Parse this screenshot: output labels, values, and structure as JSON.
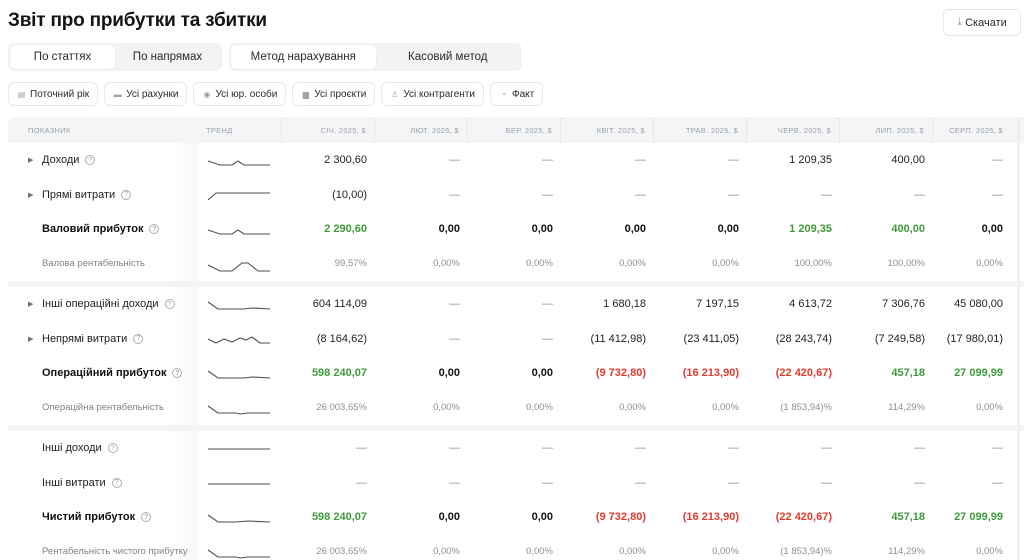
{
  "header": {
    "title": "Звіт про прибутки та збитки",
    "download_label": "Скачати",
    "download_icon": "download-icon"
  },
  "segments": {
    "grouping": [
      {
        "label": "По статтях",
        "active": true
      },
      {
        "label": "По напрямах",
        "active": false
      }
    ],
    "method": [
      {
        "label": "Метод нарахування",
        "active": true
      },
      {
        "label": "Касовий метод",
        "active": false
      }
    ]
  },
  "filters": [
    {
      "label": "Поточний рік",
      "icon": "calendar-icon"
    },
    {
      "label": "Усі рахунки",
      "icon": "accounts-icon"
    },
    {
      "label": "Усі юр. особи",
      "icon": "entity-icon"
    },
    {
      "label": "Усі проєкти",
      "icon": "briefcase-icon"
    },
    {
      "label": "Усі контрагенти",
      "icon": "people-icon"
    },
    {
      "label": "Факт",
      "icon": "fact-icon"
    }
  ],
  "table": {
    "headers": {
      "name": "ПОКАЗНИК",
      "trend": "ТРЕНД",
      "months": [
        "СІЧ. 2025, $",
        "ЛЮТ. 2025, $",
        "БЕР. 2025, $",
        "КВІТ. 2025, $",
        "ТРАВ. 2025, $",
        "ЧЕРВ. 2025, $",
        "ЛИП. 2025, $",
        "СЕРП. 2025, $"
      ]
    },
    "sections": [
      {
        "rows": [
          {
            "label": "Доходи",
            "type": "normal",
            "expandable": true,
            "help": true,
            "trend": "2,16 8,20 14,20 17,16 20,20 24,20 33,20",
            "values": [
              "2 300,60",
              "—",
              "—",
              "—",
              "—",
              "1 209,35",
              "400,00",
              "—"
            ]
          },
          {
            "label": "Прямі витрати",
            "type": "normal",
            "expandable": true,
            "help": true,
            "trend": "2,20 6,13 33,13",
            "values": [
              "(10,00)",
              "—",
              "—",
              "—",
              "—",
              "—",
              "—",
              "—"
            ]
          },
          {
            "label": "Валовий прибуток",
            "type": "bold",
            "expandable": false,
            "help": true,
            "trend": "2,16 8,20 14,20 17,16 20,20 24,20 33,20",
            "values": [
              "2 290,60",
              "0,00",
              "0,00",
              "0,00",
              "0,00",
              "1 209,35",
              "400,00",
              "0,00"
            ],
            "colors": [
              "pos",
              "",
              "",
              "",
              "",
              "pos",
              "pos",
              ""
            ]
          },
          {
            "label": "Валова рентабельність",
            "type": "sub",
            "expandable": false,
            "help": false,
            "trend": "2,16 8,22 14,22 19,14 22,14 27,22 33,22",
            "values": [
              "99,57%",
              "0,00%",
              "0,00%",
              "0,00%",
              "0,00%",
              "100,00%",
              "100,00%",
              "0,00%"
            ]
          }
        ]
      },
      {
        "rows": [
          {
            "label": "Інші операційні доходи",
            "type": "normal",
            "expandable": true,
            "help": true,
            "trend": "2,13 7,20 20,20 24,19 33,20",
            "values": [
              "604 114,09",
              "—",
              "—",
              "1 680,18",
              "7 197,15",
              "4 613,72",
              "7 306,76",
              "45 080,00"
            ]
          },
          {
            "label": "Непрямі витрати",
            "type": "normal",
            "expandable": true,
            "help": true,
            "trend": "2,15 6,19 10,15 14,18 18,14 21,16 24,13 28,19 33,19",
            "values": [
              "(8 164,62)",
              "—",
              "—",
              "(11 412,98)",
              "(23 411,05)",
              "(28 243,74)",
              "(7 249,58)",
              "(17 980,01)"
            ]
          },
          {
            "label": "Операційний прибуток",
            "type": "bold",
            "expandable": false,
            "help": true,
            "trend": "2,13 7,20 20,20 24,19 33,20",
            "values": [
              "598 240,07",
              "0,00",
              "0,00",
              "(9 732,80)",
              "(16 213,90)",
              "(22 420,67)",
              "457,18",
              "27 099,99"
            ],
            "colors": [
              "pos",
              "",
              "",
              "neg",
              "neg",
              "neg",
              "pos",
              "pos"
            ]
          },
          {
            "label": "Операційна рентабельність",
            "type": "sub",
            "expandable": false,
            "help": false,
            "trend": "2,13 7,20 16,20 18,21 22,20 33,20",
            "values": [
              "26 003,65%",
              "0,00%",
              "0,00%",
              "0,00%",
              "0,00%",
              "(1 853,94)%",
              "114,29%",
              "0,00%"
            ]
          }
        ]
      },
      {
        "rows": [
          {
            "label": "Інші доходи",
            "type": "normal",
            "expandable": false,
            "help": true,
            "trend": "2,16 33,16",
            "values": [
              "—",
              "—",
              "—",
              "—",
              "—",
              "—",
              "—",
              "—"
            ]
          },
          {
            "label": "Інші витрати",
            "type": "normal",
            "expandable": false,
            "help": true,
            "trend": "2,16 33,16",
            "values": [
              "—",
              "—",
              "—",
              "—",
              "—",
              "—",
              "—",
              "—"
            ]
          },
          {
            "label": "Чистий прибуток",
            "type": "bold",
            "expandable": false,
            "help": true,
            "trend": "2,13 7,20 16,20 22,19 33,20",
            "values": [
              "598 240,07",
              "0,00",
              "0,00",
              "(9 732,80)",
              "(16 213,90)",
              "(22 420,67)",
              "457,18",
              "27 099,99"
            ],
            "colors": [
              "pos",
              "",
              "",
              "neg",
              "neg",
              "neg",
              "pos",
              "pos"
            ]
          },
          {
            "label": "Рентабельність чистого прибутку",
            "type": "sub",
            "expandable": false,
            "help": false,
            "trend": "2,13 7,20 16,20 18,21 22,20 33,20",
            "values": [
              "26 003,65%",
              "0,00%",
              "0,00%",
              "0,00%",
              "0,00%",
              "(1 853,94)%",
              "114,29%",
              "0,00%"
            ]
          }
        ]
      }
    ]
  },
  "colors": {
    "positive": "#3f9a3a",
    "negative": "#e23b2e",
    "header_bg": "#f4f5f6"
  }
}
